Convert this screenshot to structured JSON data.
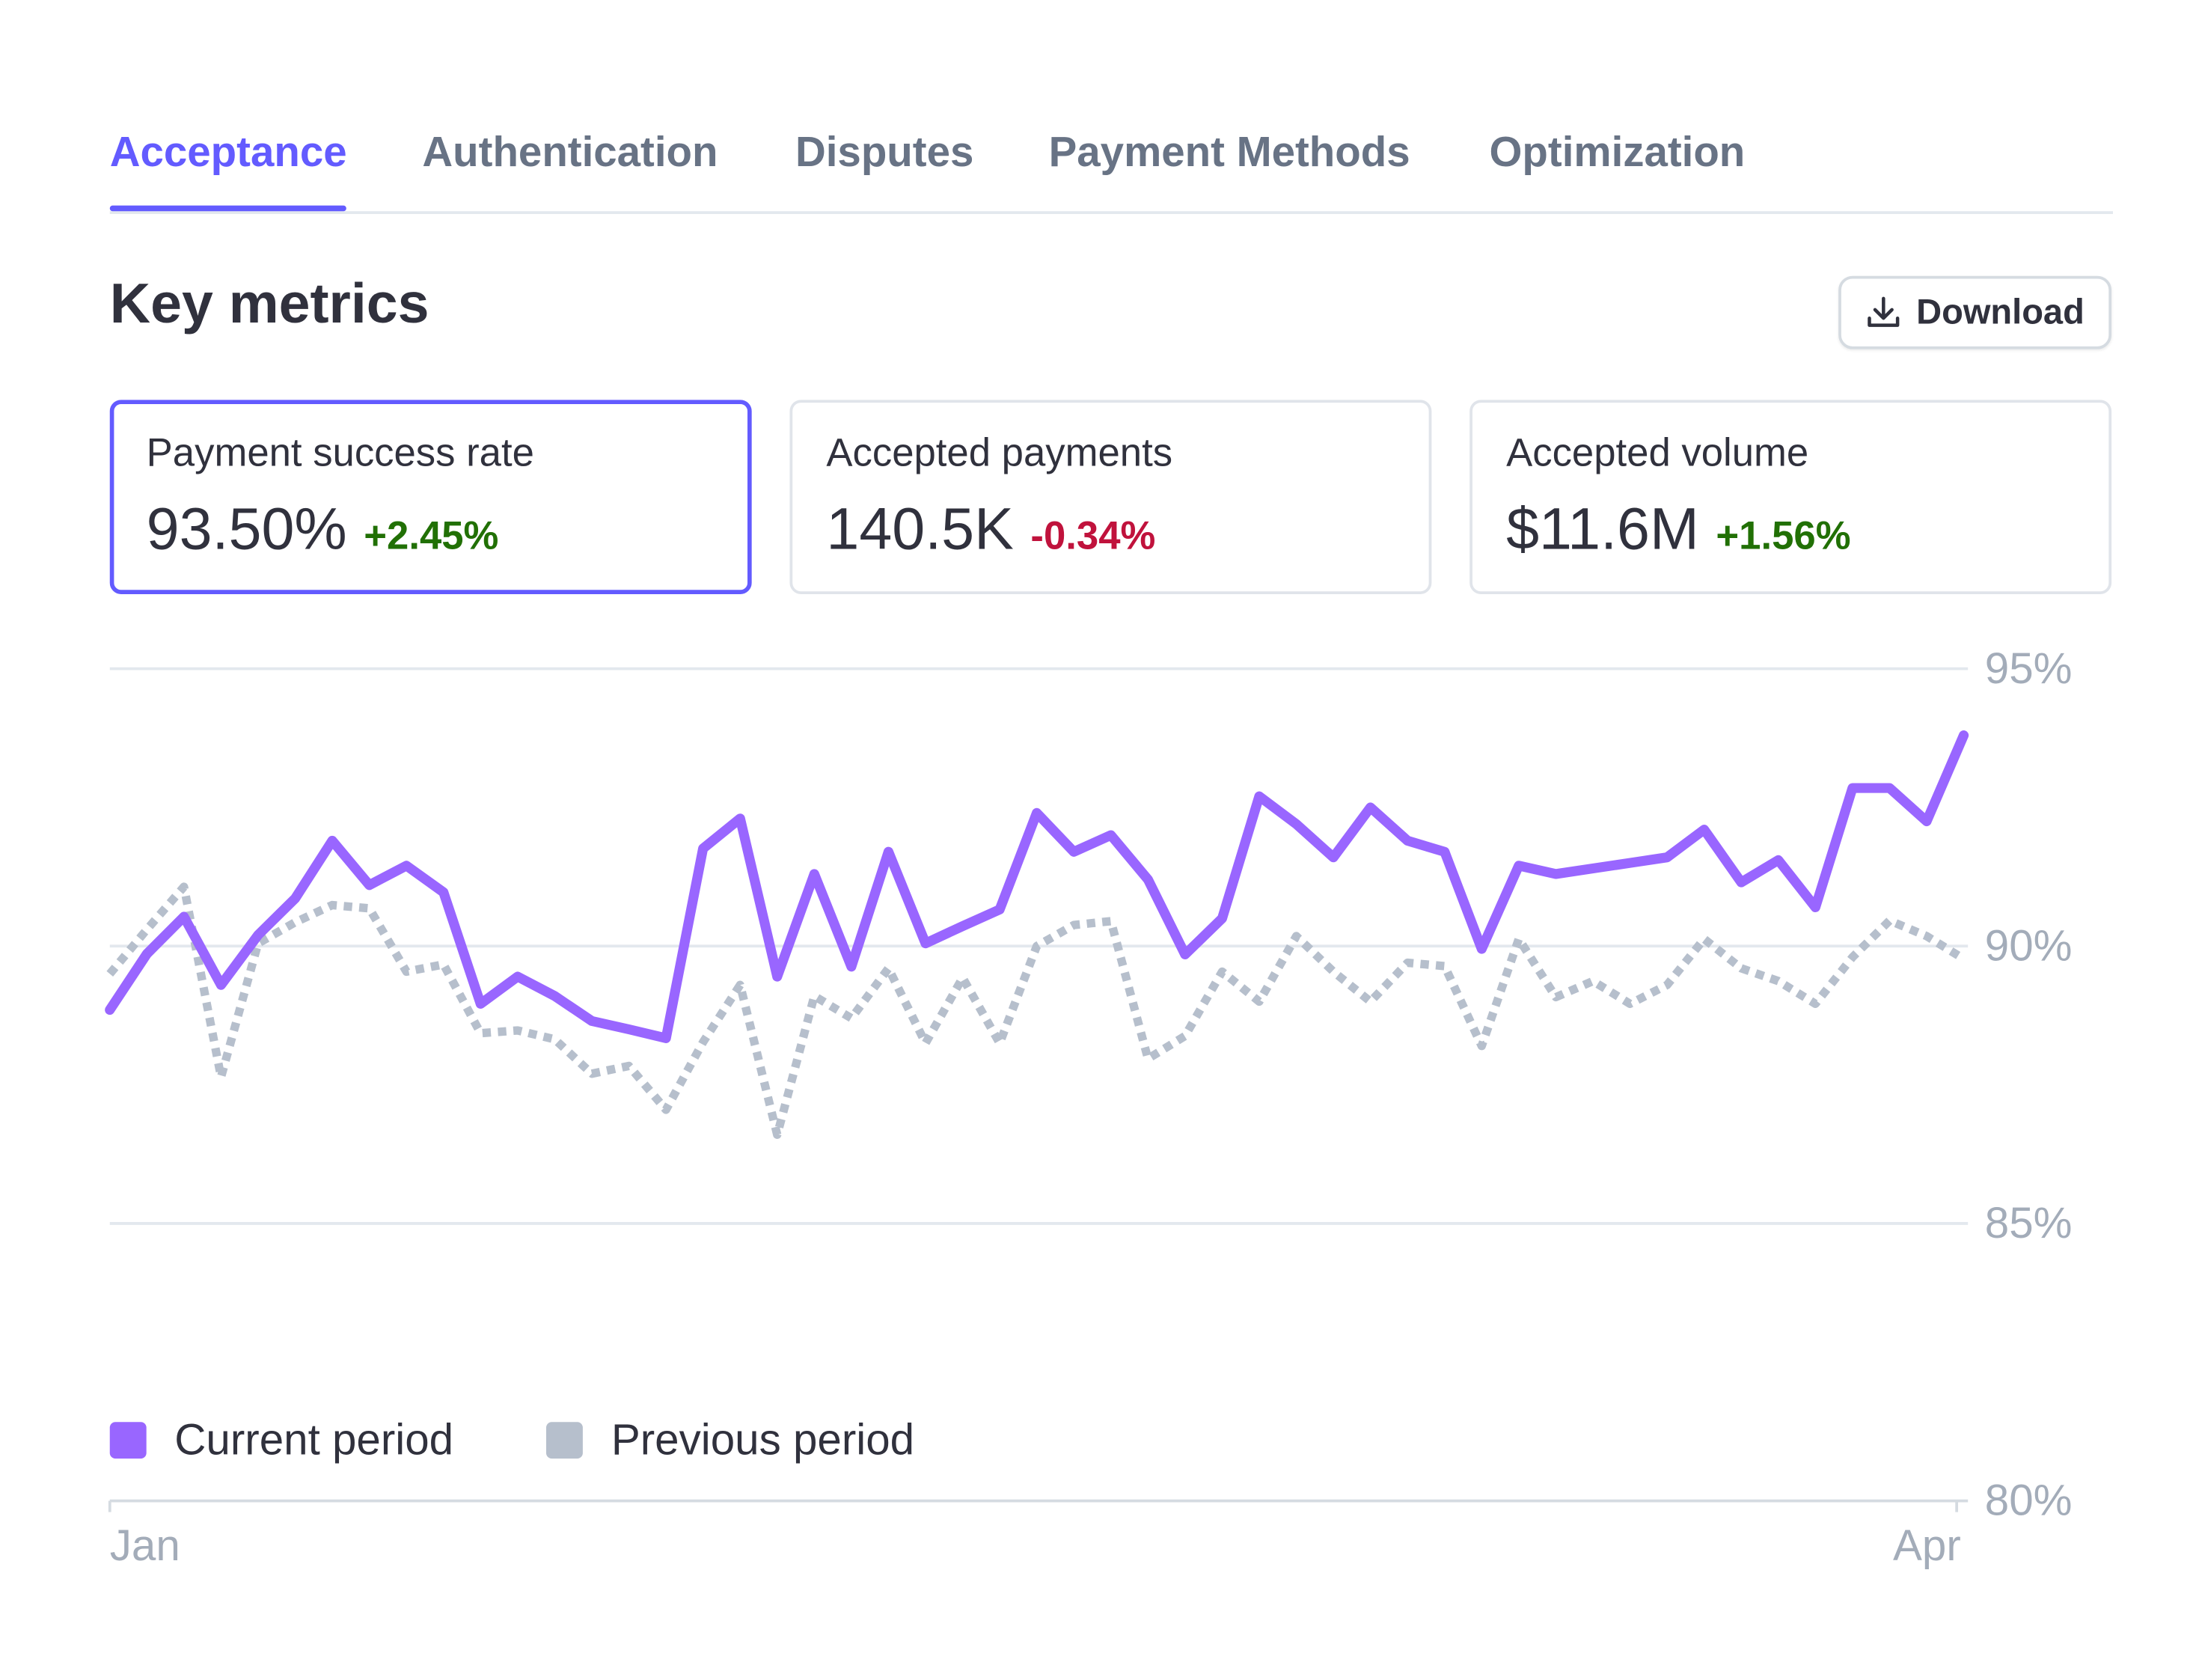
{
  "tabs": [
    "Acceptance",
    "Authentication",
    "Disputes",
    "Payment Methods",
    "Optimization"
  ],
  "heading": "Key metrics",
  "download": "Download",
  "cards": [
    {
      "label": "Payment success rate",
      "value": "93.50%",
      "change": "+2.45%"
    },
    {
      "label": "Accepted payments",
      "value": "140.5K",
      "change": "-0.34%"
    },
    {
      "label": "Accepted volume",
      "value": "$11.6M",
      "change": "+1.56%"
    }
  ],
  "chart_data": {
    "type": "line",
    "categories": [
      "Jan",
      null,
      null,
      null,
      null,
      null,
      null,
      null,
      null,
      null,
      null,
      null,
      null,
      null,
      null,
      null,
      null,
      null,
      null,
      null,
      null,
      null,
      null,
      null,
      null,
      null,
      null,
      null,
      null,
      null,
      null,
      null,
      null,
      null,
      null,
      null,
      null,
      null,
      null,
      null,
      null,
      null,
      null,
      null,
      null,
      null,
      null,
      null,
      null,
      null,
      "Apr"
    ],
    "series": [
      {
        "name": "Current period",
        "color": "#9966ff",
        "values": [
          88.85,
          89.86,
          90.53,
          89.3,
          90.2,
          90.86,
          91.9,
          91.1,
          91.45,
          90.97,
          88.96,
          89.45,
          89.1,
          88.65,
          88.5,
          88.34,
          91.76,
          92.3,
          89.45,
          91.3,
          89.63,
          91.7,
          90.05,
          90.36,
          90.66,
          92.4,
          91.7,
          92.0,
          91.2,
          89.85,
          90.5,
          92.7,
          92.2,
          91.6,
          92.5,
          91.9,
          91.7,
          89.95,
          91.45,
          91.3,
          91.4,
          91.5,
          91.6,
          92.1,
          91.15,
          91.55,
          90.7,
          92.85,
          92.85,
          92.25,
          93.8
        ]
      },
      {
        "name": "Previous period",
        "color": "#b6bfcc",
        "values": [
          89.5,
          90.3,
          91.07,
          87.64,
          90.05,
          90.43,
          90.74,
          90.68,
          89.54,
          89.67,
          88.43,
          88.48,
          88.32,
          87.7,
          87.84,
          87.05,
          88.27,
          89.3,
          86.6,
          89.1,
          88.7,
          89.6,
          88.25,
          89.43,
          88.25,
          90.0,
          90.38,
          90.45,
          87.97,
          88.38,
          89.54,
          89.0,
          90.18,
          89.54,
          89.0,
          89.7,
          89.64,
          88.2,
          90.13,
          89.08,
          89.37,
          88.96,
          89.3,
          90.13,
          89.6,
          89.37,
          88.96,
          89.8,
          90.46,
          90.18,
          89.77
        ]
      }
    ],
    "ylim": [
      80,
      95
    ],
    "yticks": [
      {
        "value": 80,
        "label": "80%"
      },
      {
        "value": 85,
        "label": "85%"
      },
      {
        "value": 90,
        "label": "90%"
      },
      {
        "value": 95,
        "label": "95%"
      }
    ],
    "grid": true
  }
}
